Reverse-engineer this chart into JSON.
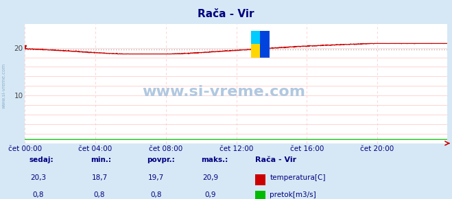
{
  "title": "Rača - Vir",
  "title_color": "#000080",
  "bg_color": "#d6e8f5",
  "plot_bg_color": "#ffffff",
  "grid_color_h": "#ffcccc",
  "grid_color_v": "#ffcccc",
  "ylim": [
    0,
    25
  ],
  "yticks": [
    2,
    4,
    6,
    8,
    10,
    12,
    14,
    16,
    18,
    20
  ],
  "ytick_labels": [
    "",
    "",
    "",
    "",
    "10",
    "",
    "",
    "",
    "",
    "20"
  ],
  "xtick_labels": [
    "čet 00:00",
    "čet 04:00",
    "čet 08:00",
    "čet 12:00",
    "čet 16:00",
    "čet 20:00"
  ],
  "xtick_positions": [
    0,
    288,
    576,
    864,
    1152,
    1440
  ],
  "total_points": 1728,
  "temp_min": 18.7,
  "temp_max": 20.9,
  "temp_avg": 19.7,
  "temp_color": "#cc0000",
  "flow_color": "#00bb00",
  "avg_line_color": "#aaaaaa",
  "watermark_text": "www.si-vreme.com",
  "watermark_color": "#b0c8e0",
  "side_text": "www.si-vreme.com",
  "side_text_color": "#8ab0cc",
  "footer_label_color": "#000080",
  "footer_value_color": "#000080",
  "legend_title": "Rača - Vir",
  "legend_title_color": "#000080",
  "footer_headers": [
    "sedaj:",
    "min.:",
    "povpr.:",
    "maks.:"
  ],
  "footer_temp_values": [
    "20,3",
    "18,7",
    "19,7",
    "20,9"
  ],
  "footer_flow_values": [
    "0,8",
    "0,8",
    "0,8",
    "0,9"
  ],
  "legend_items": [
    "temperatura[C]",
    "pretok[m3/s]"
  ],
  "legend_colors": [
    "#cc0000",
    "#00bb00"
  ],
  "arrow_color": "#cc0000",
  "logo_colors": [
    "#FFD700",
    "#0055FF",
    "#00AAFF"
  ]
}
